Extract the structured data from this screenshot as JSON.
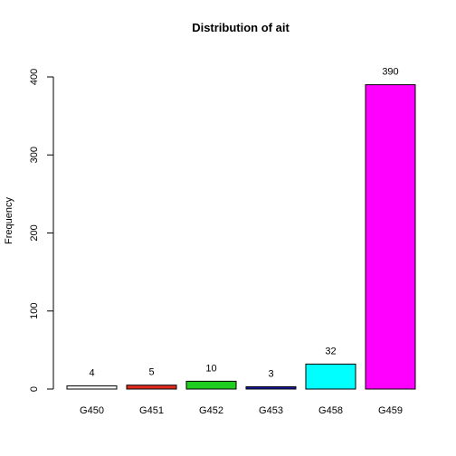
{
  "chart_data": {
    "type": "bar",
    "title": "Distribution of ait",
    "xlabel": "",
    "ylabel": "Frequency",
    "categories": [
      "G450",
      "G451",
      "G452",
      "G453",
      "G458",
      "G459"
    ],
    "values": [
      4,
      5,
      10,
      3,
      32,
      390
    ],
    "data_labels": [
      "4",
      "5",
      "10",
      "3",
      "32",
      "390"
    ],
    "colors": [
      "#ffffff",
      "#df2c1f",
      "#1fcd1f",
      "#1717a8",
      "#00ffff",
      "#ff00ff"
    ],
    "ylim": [
      0,
      400
    ],
    "yticks": [
      "0",
      "100",
      "200",
      "300",
      "400"
    ],
    "grid": false,
    "legend": false
  }
}
